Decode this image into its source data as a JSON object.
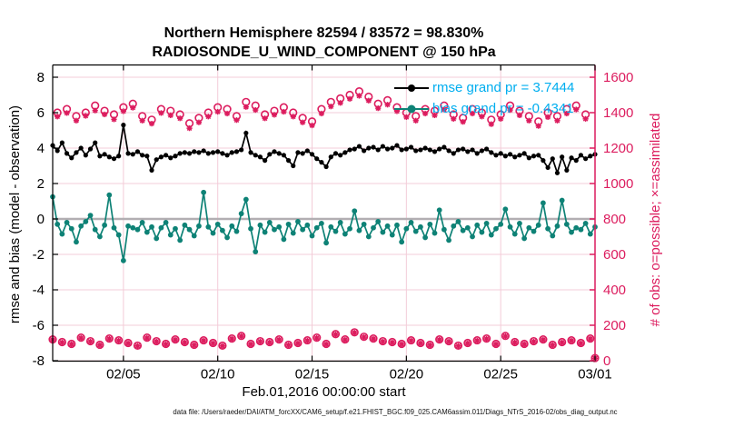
{
  "figure": {
    "title_line1": "Northern Hemisphere 82594 / 83572 = 98.830%",
    "title_line2": "RADIOSONDE_U_WIND_COMPONENT @ 150 hPa",
    "xlabel": "Feb.01,2016 00:00:00 start",
    "ylabel_left": "rmse and bias (model - observation)",
    "ylabel_right": "# of obs: o=possible; ×=assimilated",
    "footer": "data file: /Users/raeder/DAI/ATM_forcXX/CAM6_setup/f.e21.FHIST_BGC.f09_025.CAM6assim.011/Diags_NTrS_2016-02/obs_diag_output.nc",
    "legend": {
      "rmse_label": "rmse grand pr = 3.7444",
      "bias_label": "bias grand pr = -0.4341"
    },
    "colors": {
      "rmse": "#000000",
      "bias": "#0e8276",
      "obs_count": "#dc1c5e",
      "legend_text": "#00aeef",
      "grid": "#f3ccd8",
      "zero_line": "#b2aeb2",
      "axis_black": "#000000"
    }
  },
  "chart_data": {
    "type": "line",
    "title": "Northern Hemisphere 82594 / 83572 = 98.830% | RADIOSONDE_U_WIND_COMPONENT @ 150 hPa",
    "xlabel": "Feb.01,2016 00:00:00 start",
    "x_unit": "days since Feb.01,2016 00:00:00 UTC, 6-hourly bins",
    "xlim": [
      0.25,
      29
    ],
    "x_ticks": {
      "positions": [
        4,
        9,
        14,
        19,
        24,
        29
      ],
      "labels": [
        "02/05",
        "02/10",
        "02/15",
        "02/20",
        "02/25",
        "03/01"
      ]
    },
    "y_left": {
      "label": "rmse and bias (model - observation)",
      "min": -8.03,
      "max": 8.69,
      "ticks": [
        -8,
        -6,
        -4,
        -2,
        0,
        2,
        4,
        6,
        8
      ]
    },
    "y_right": {
      "label": "# of obs: o=possible; ×=assimilated",
      "min": 0,
      "max": 1600,
      "ticks": [
        0,
        200,
        400,
        600,
        800,
        1000,
        1200,
        1400,
        1600
      ]
    },
    "zero_reference_line": 0,
    "grand_means": {
      "rmse": 3.7444,
      "bias": -0.4341
    },
    "x": [
      0.25,
      0.5,
      0.75,
      1,
      1.25,
      1.5,
      1.75,
      2,
      2.25,
      2.5,
      2.75,
      3,
      3.25,
      3.5,
      3.75,
      4,
      4.25,
      4.5,
      4.75,
      5,
      5.25,
      5.5,
      5.75,
      6,
      6.25,
      6.5,
      6.75,
      7,
      7.25,
      7.5,
      7.75,
      8,
      8.25,
      8.5,
      8.75,
      9,
      9.25,
      9.5,
      9.75,
      10,
      10.25,
      10.5,
      10.75,
      11,
      11.25,
      11.5,
      11.75,
      12,
      12.25,
      12.5,
      12.75,
      13,
      13.25,
      13.5,
      13.75,
      14,
      14.25,
      14.5,
      14.75,
      15,
      15.25,
      15.5,
      15.75,
      16,
      16.25,
      16.5,
      16.75,
      17,
      17.25,
      17.5,
      17.75,
      18,
      18.25,
      18.5,
      18.75,
      19,
      19.25,
      19.5,
      19.75,
      20,
      20.25,
      20.5,
      20.75,
      21,
      21.25,
      21.5,
      21.75,
      22,
      22.25,
      22.5,
      22.75,
      23,
      23.25,
      23.5,
      23.75,
      24,
      24.25,
      24.5,
      24.75,
      25,
      25.25,
      25.5,
      25.75,
      26,
      26.25,
      26.5,
      26.75,
      27,
      27.25,
      27.5,
      27.75,
      28,
      28.25,
      28.5,
      28.75,
      29
    ],
    "series": [
      {
        "name": "rmse",
        "axis": "left",
        "style": "line+dot",
        "color": "#000000",
        "values": [
          4.15,
          3.85,
          4.3,
          3.7,
          3.45,
          3.75,
          4.0,
          3.6,
          3.95,
          4.3,
          3.55,
          3.65,
          3.5,
          3.4,
          3.55,
          5.3,
          3.7,
          3.65,
          3.8,
          3.6,
          3.55,
          2.75,
          3.35,
          3.5,
          3.6,
          3.45,
          3.55,
          3.7,
          3.75,
          3.7,
          3.8,
          3.75,
          3.85,
          3.7,
          3.75,
          3.8,
          3.7,
          3.6,
          3.75,
          3.8,
          3.9,
          4.85,
          3.75,
          3.6,
          3.5,
          3.3,
          3.65,
          3.8,
          3.7,
          3.6,
          3.3,
          3.0,
          3.75,
          3.7,
          3.85,
          3.65,
          3.4,
          3.2,
          2.95,
          3.5,
          3.7,
          3.6,
          3.75,
          3.9,
          3.95,
          4.1,
          3.85,
          4.0,
          4.05,
          3.9,
          4.1,
          3.95,
          4.0,
          4.15,
          3.9,
          3.95,
          4.05,
          3.85,
          3.9,
          4.0,
          3.9,
          3.8,
          3.95,
          4.05,
          3.85,
          3.7,
          3.9,
          3.95,
          3.8,
          3.9,
          3.7,
          3.85,
          3.95,
          3.75,
          3.6,
          3.7,
          3.55,
          3.65,
          3.5,
          3.6,
          3.7,
          3.45,
          3.55,
          3.6,
          3.3,
          2.9,
          3.4,
          2.6,
          3.5,
          2.75,
          3.45,
          3.3,
          3.6,
          3.4,
          3.55,
          3.65
        ]
      },
      {
        "name": "bias",
        "axis": "left",
        "style": "line+dot",
        "color": "#0e8276",
        "values": [
          1.25,
          -0.3,
          -0.85,
          -0.2,
          -0.55,
          -1.3,
          -0.4,
          -0.15,
          0.2,
          -0.6,
          -1.0,
          -0.35,
          1.35,
          -0.5,
          -0.9,
          -2.35,
          -0.4,
          -0.5,
          -0.6,
          -0.2,
          -0.75,
          -0.45,
          -1.1,
          -0.5,
          -0.2,
          -0.9,
          -0.55,
          -1.2,
          -0.35,
          -0.6,
          -0.95,
          -0.4,
          1.5,
          -0.45,
          -0.8,
          -0.3,
          -0.65,
          -1.05,
          -0.4,
          -0.7,
          0.3,
          1.1,
          -0.55,
          -1.85,
          -0.35,
          -0.75,
          -0.2,
          -0.6,
          -0.45,
          -1.15,
          -0.3,
          -0.8,
          -0.15,
          -0.6,
          -0.35,
          -0.95,
          -0.5,
          -0.25,
          -1.35,
          -0.45,
          -0.7,
          -0.2,
          -0.85,
          -0.55,
          0.45,
          -0.65,
          -0.3,
          -1.0,
          -0.5,
          -0.15,
          -0.75,
          -0.4,
          -0.9,
          -0.35,
          -1.3,
          -0.55,
          -0.2,
          -0.7,
          -0.45,
          -1.05,
          -0.3,
          -0.8,
          0.5,
          -0.6,
          -1.2,
          -0.4,
          -0.15,
          -0.65,
          -0.5,
          -1.0,
          -0.35,
          -0.75,
          -0.25,
          -0.9,
          -0.55,
          -0.3,
          0.55,
          -0.45,
          -0.85,
          -0.25,
          -1.1,
          -0.5,
          -0.7,
          -0.35,
          0.9,
          -0.55,
          -0.95,
          -0.4,
          1.05,
          -0.3,
          -0.75,
          -0.5,
          -0.6,
          -0.25,
          -0.85,
          -0.45
        ]
      },
      {
        "name": "N_possible",
        "axis": "right",
        "style": "marker-o",
        "color": "#dc1c5e",
        "values": [
          120,
          1400,
          105,
          1420,
          95,
          1380,
          130,
          1400,
          110,
          1440,
          90,
          1410,
          125,
          1390,
          115,
          1430,
          100,
          1450,
          85,
          1380,
          130,
          1360,
          110,
          1420,
          95,
          1410,
          120,
          1390,
          105,
          1340,
          90,
          1370,
          115,
          1400,
          100,
          1430,
          85,
          1420,
          125,
          1380,
          140,
          1460,
          95,
          1440,
          110,
          1390,
          105,
          1410,
          120,
          1430,
          90,
          1400,
          100,
          1370,
          115,
          1350,
          130,
          1420,
          95,
          1460,
          150,
          1480,
          120,
          1500,
          160,
          1520,
          135,
          1490,
          125,
          1450,
          110,
          1470,
          105,
          1430,
          95,
          1400,
          115,
          1380,
          100,
          1420,
          90,
          1410,
          120,
          1440,
          110,
          1390,
          85,
          1370,
          100,
          1420,
          115,
          1400,
          125,
          1360,
          95,
          1390,
          140,
          1440,
          105,
          1410,
          95,
          1380,
          110,
          1350,
          120,
          1400,
          90,
          1380,
          105,
          1420,
          115,
          1440,
          100,
          1390,
          125,
          15
        ]
      },
      {
        "name": "N_assimilated",
        "axis": "right",
        "style": "marker-asterisk",
        "color": "#dc1c5e",
        "values": [
          118,
          1378,
          103,
          1398,
          93,
          1355,
          128,
          1382,
          108,
          1412,
          88,
          1390,
          123,
          1362,
          113,
          1408,
          98,
          1428,
          83,
          1355,
          128,
          1338,
          108,
          1398,
          93,
          1385,
          118,
          1368,
          103,
          1312,
          88,
          1345,
          113,
          1378,
          98,
          1405,
          83,
          1395,
          123,
          1358,
          138,
          1432,
          93,
          1415,
          108,
          1368,
          103,
          1388,
          118,
          1405,
          88,
          1378,
          98,
          1345,
          113,
          1328,
          128,
          1395,
          93,
          1435,
          148,
          1455,
          118,
          1478,
          158,
          1495,
          133,
          1468,
          123,
          1425,
          108,
          1445,
          103,
          1408,
          93,
          1375,
          113,
          1355,
          98,
          1395,
          88,
          1385,
          118,
          1418,
          108,
          1365,
          83,
          1348,
          98,
          1395,
          113,
          1378,
          123,
          1335,
          93,
          1365,
          138,
          1415,
          103,
          1385,
          93,
          1355,
          108,
          1325,
          118,
          1375,
          88,
          1355,
          103,
          1395,
          113,
          1418,
          98,
          1365,
          123,
          14
        ]
      }
    ],
    "legend_entries": [
      "rmse grand pr = 3.7444",
      "bias grand pr = -0.4341"
    ],
    "legend_position": "upper-right-inside",
    "grid": true
  }
}
